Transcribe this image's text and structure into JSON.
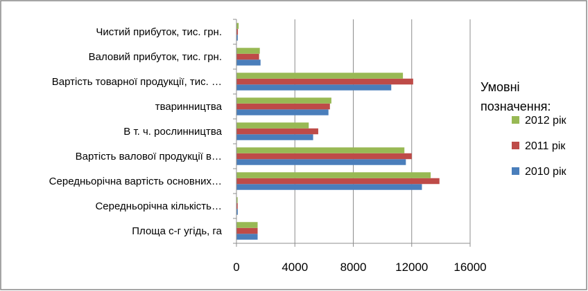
{
  "chart_data": {
    "type": "bar",
    "orientation": "horizontal",
    "categories": [
      "Площа с-г угідь, га",
      "Середньорічна кількість…",
      "Середньорічна вартість основних…",
      "Вартість валової продукції в…",
      "В т. ч. рослинництва",
      "тваринництва",
      "Вартість товарної продукції, тис. …",
      "Валовий прибуток, тис. грн.",
      "Чистий прибуток, тис. грн."
    ],
    "series": [
      {
        "name": "2010 рік",
        "color": "#4a7ebb",
        "values": [
          1450,
          90,
          12700,
          11600,
          5250,
          6300,
          10600,
          1650,
          90
        ]
      },
      {
        "name": "2011 рік",
        "color": "#be4b48",
        "values": [
          1450,
          85,
          13900,
          12000,
          5600,
          6400,
          12100,
          1550,
          100
        ]
      },
      {
        "name": "2012 рік",
        "color": "#98b954",
        "values": [
          1450,
          80,
          13300,
          11500,
          4950,
          6500,
          11400,
          1600,
          150
        ]
      }
    ],
    "xlim": [
      0,
      16000
    ],
    "xticks": [
      "0",
      "4000",
      "8000",
      "12000",
      "16000"
    ],
    "grid": true,
    "legend": {
      "title_lines": [
        "Умовні",
        "позначення:"
      ],
      "placement": "right"
    }
  }
}
